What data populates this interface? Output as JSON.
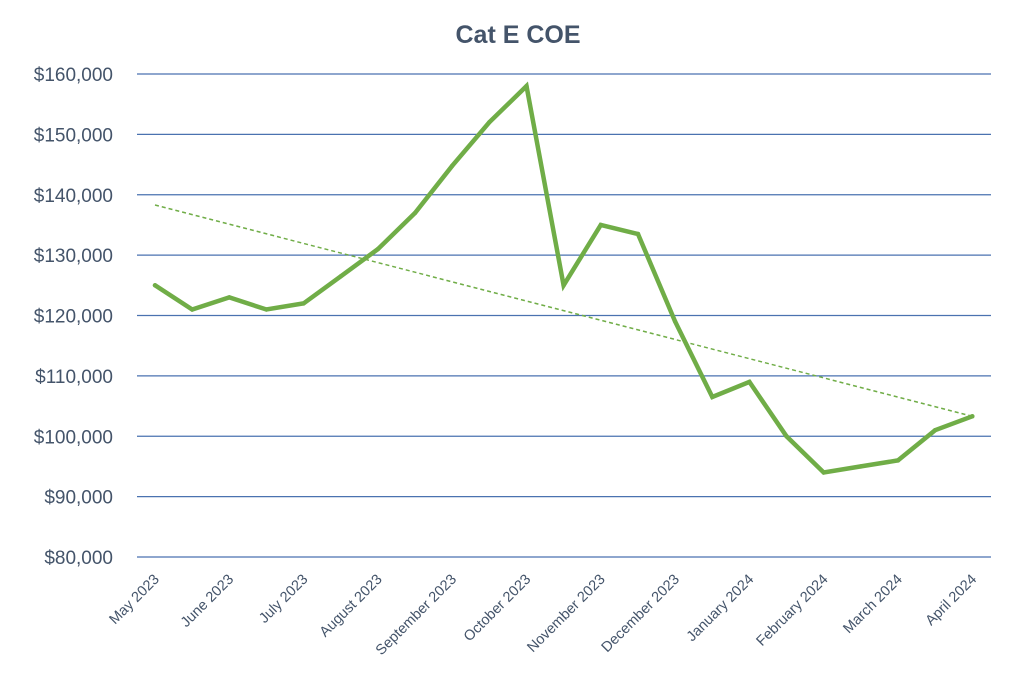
{
  "chart_data": {
    "type": "line",
    "title": "Cat E COE",
    "xlabel": "",
    "ylabel": "",
    "ylim": [
      80000,
      160000
    ],
    "y_ticks": [
      80000,
      90000,
      100000,
      110000,
      120000,
      130000,
      140000,
      150000,
      160000
    ],
    "y_tick_labels": [
      "$80,000",
      "$90,000",
      "$100,000",
      "$110,000",
      "$120,000",
      "$130,000",
      "$140,000",
      "$150,000",
      "$160,000"
    ],
    "categories": [
      "May 2023",
      "June 2023",
      "July 2023",
      "August 2023",
      "September 2023",
      "October 2023",
      "November 2023",
      "December 2023",
      "January 2024",
      "February 2024",
      "March 2024",
      "April 2024"
    ],
    "grid": true,
    "legend": "none",
    "series": [
      {
        "name": "Cat E COE",
        "color": "#70ad47",
        "x": [
          0,
          0.5,
          1,
          1.5,
          2,
          2.5,
          3,
          3.5,
          4,
          4.5,
          5,
          5.5,
          6,
          6.5,
          7,
          7.5,
          8,
          8.5,
          9,
          9.5,
          10,
          10.5,
          11
        ],
        "values": [
          125000,
          121000,
          123000,
          121000,
          122000,
          126500,
          131000,
          137000,
          144800,
          152000,
          158000,
          125000,
          135000,
          133500,
          119000,
          106500,
          109000,
          100000,
          94000,
          95000,
          96000,
          101000,
          103300
        ]
      },
      {
        "name": "Linear trendline",
        "color": "#70ad47",
        "style": "dashed",
        "x": [
          0,
          11
        ],
        "values": [
          138300,
          103300
        ]
      }
    ]
  }
}
